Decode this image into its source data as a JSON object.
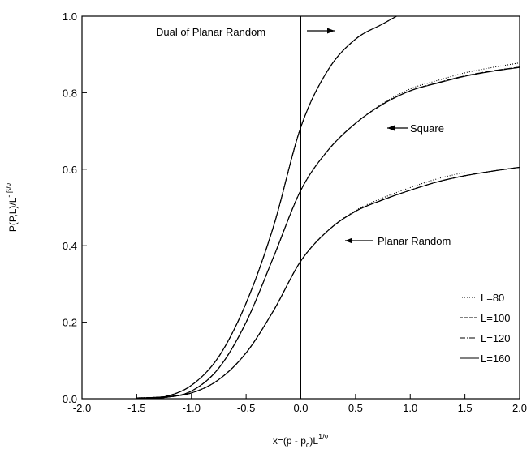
{
  "chart_data": {
    "type": "line",
    "xlabel_parts": [
      "x=(p - p",
      "c",
      ")L",
      "1/ν"
    ],
    "ylabel_parts": [
      "P(P,L)/L",
      "- β/ν"
    ],
    "xlim": [
      -2,
      2
    ],
    "ylim": [
      0,
      1
    ],
    "xticks": [
      {
        "value": -2,
        "label": "-2.0"
      },
      {
        "value": -1.5,
        "label": "-1.5"
      },
      {
        "value": -1,
        "label": "-1.0"
      },
      {
        "value": -0.5,
        "label": "-0.5"
      },
      {
        "value": 0,
        "label": "0.0"
      },
      {
        "value": 0.5,
        "label": "0.5"
      },
      {
        "value": 1,
        "label": "1.0"
      },
      {
        "value": 1.5,
        "label": "1.5"
      },
      {
        "value": 2,
        "label": "2.0"
      }
    ],
    "yticks": [
      {
        "value": 0,
        "label": "0.0"
      },
      {
        "value": 0.2,
        "label": "0.2"
      },
      {
        "value": 0.4,
        "label": "0.4"
      },
      {
        "value": 0.6,
        "label": "0.6"
      },
      {
        "value": 0.8,
        "label": "0.8"
      },
      {
        "value": 1,
        "label": "1.0"
      }
    ],
    "vline": 0,
    "legend_position": "lower right",
    "legend": [
      {
        "name": "L=80",
        "dash": "1,2"
      },
      {
        "name": "L=100",
        "dash": "4,2"
      },
      {
        "name": "L=120",
        "dash": "7,2,1,2"
      },
      {
        "name": "L=160",
        "dash": "none"
      }
    ],
    "x": [
      -2,
      -1.75,
      -1.5,
      -1.25,
      -1,
      -0.75,
      -0.5,
      -0.25,
      0,
      0.25,
      0.5,
      0.75,
      1,
      1.25,
      1.5,
      1.75,
      2
    ],
    "families": [
      {
        "label": "Dual of Planar Random",
        "arrow": "right",
        "curves": [
          {
            "values": [
              null,
              null,
              0,
              0.005,
              0.035,
              0.11,
              0.25,
              0.45,
              0.71,
              0.86,
              0.94,
              0.98,
              1.02,
              null,
              null,
              null,
              null
            ]
          },
          {
            "values": [
              null,
              null,
              0,
              0.005,
              0.035,
              0.11,
              0.25,
              0.45,
              0.71,
              0.86,
              0.94,
              0.98,
              1.02,
              null,
              null,
              null,
              null
            ]
          },
          {
            "values": [
              null,
              null,
              0,
              0.005,
              0.035,
              0.11,
              0.25,
              0.45,
              0.71,
              0.86,
              0.94,
              0.98,
              1.02,
              null,
              null,
              null,
              null
            ]
          },
          {
            "values": [
              null,
              null,
              0,
              0.005,
              0.035,
              0.11,
              0.25,
              0.45,
              0.71,
              0.86,
              0.94,
              0.98,
              1.02,
              null,
              null,
              null,
              null
            ]
          }
        ]
      },
      {
        "label": "Square",
        "arrow": "left",
        "curves": [
          {
            "values": [
              null,
              null,
              0,
              0.003,
              0.02,
              0.08,
              0.2,
              0.37,
              0.545,
              0.65,
              0.72,
              0.772,
              0.81,
              0.832,
              0.852,
              0.866,
              0.878
            ]
          },
          {
            "values": [
              null,
              null,
              0,
              0.003,
              0.02,
              0.08,
              0.2,
              0.37,
              0.545,
              0.65,
              0.72,
              0.77,
              0.805,
              0.826,
              0.844,
              0.857,
              0.867
            ]
          },
          {
            "values": [
              null,
              null,
              0,
              0.003,
              0.02,
              0.08,
              0.2,
              0.37,
              0.545,
              0.65,
              0.72,
              0.77,
              0.805,
              0.826,
              0.844,
              0.857,
              0.867
            ]
          },
          {
            "values": [
              null,
              null,
              0,
              0.003,
              0.02,
              0.08,
              0.2,
              0.37,
              0.545,
              0.65,
              0.72,
              0.77,
              0.805,
              0.825,
              0.843,
              0.856,
              0.866
            ]
          }
        ]
      },
      {
        "label": "Planar Random",
        "arrow": "left",
        "curves": [
          {
            "values": [
              null,
              null,
              0.002,
              0.005,
              0.015,
              0.05,
              0.12,
              0.23,
              0.36,
              0.44,
              0.492,
              0.525,
              0.552,
              0.575,
              0.592,
              null,
              null
            ]
          },
          {
            "values": [
              null,
              null,
              0.002,
              0.005,
              0.015,
              0.05,
              0.12,
              0.23,
              0.36,
              0.44,
              0.49,
              0.52,
              0.545,
              0.567,
              0.583,
              0.595,
              0.605
            ]
          },
          {
            "values": [
              null,
              null,
              0.002,
              0.005,
              0.015,
              0.05,
              0.12,
              0.23,
              0.36,
              0.44,
              0.49,
              0.52,
              0.545,
              0.567,
              0.583,
              0.595,
              0.605
            ]
          },
          {
            "values": [
              null,
              null,
              0.002,
              0.005,
              0.015,
              0.05,
              0.12,
              0.23,
              0.36,
              0.44,
              0.49,
              0.52,
              0.545,
              0.567,
              0.583,
              0.595,
              0.605
            ]
          }
        ]
      }
    ]
  }
}
